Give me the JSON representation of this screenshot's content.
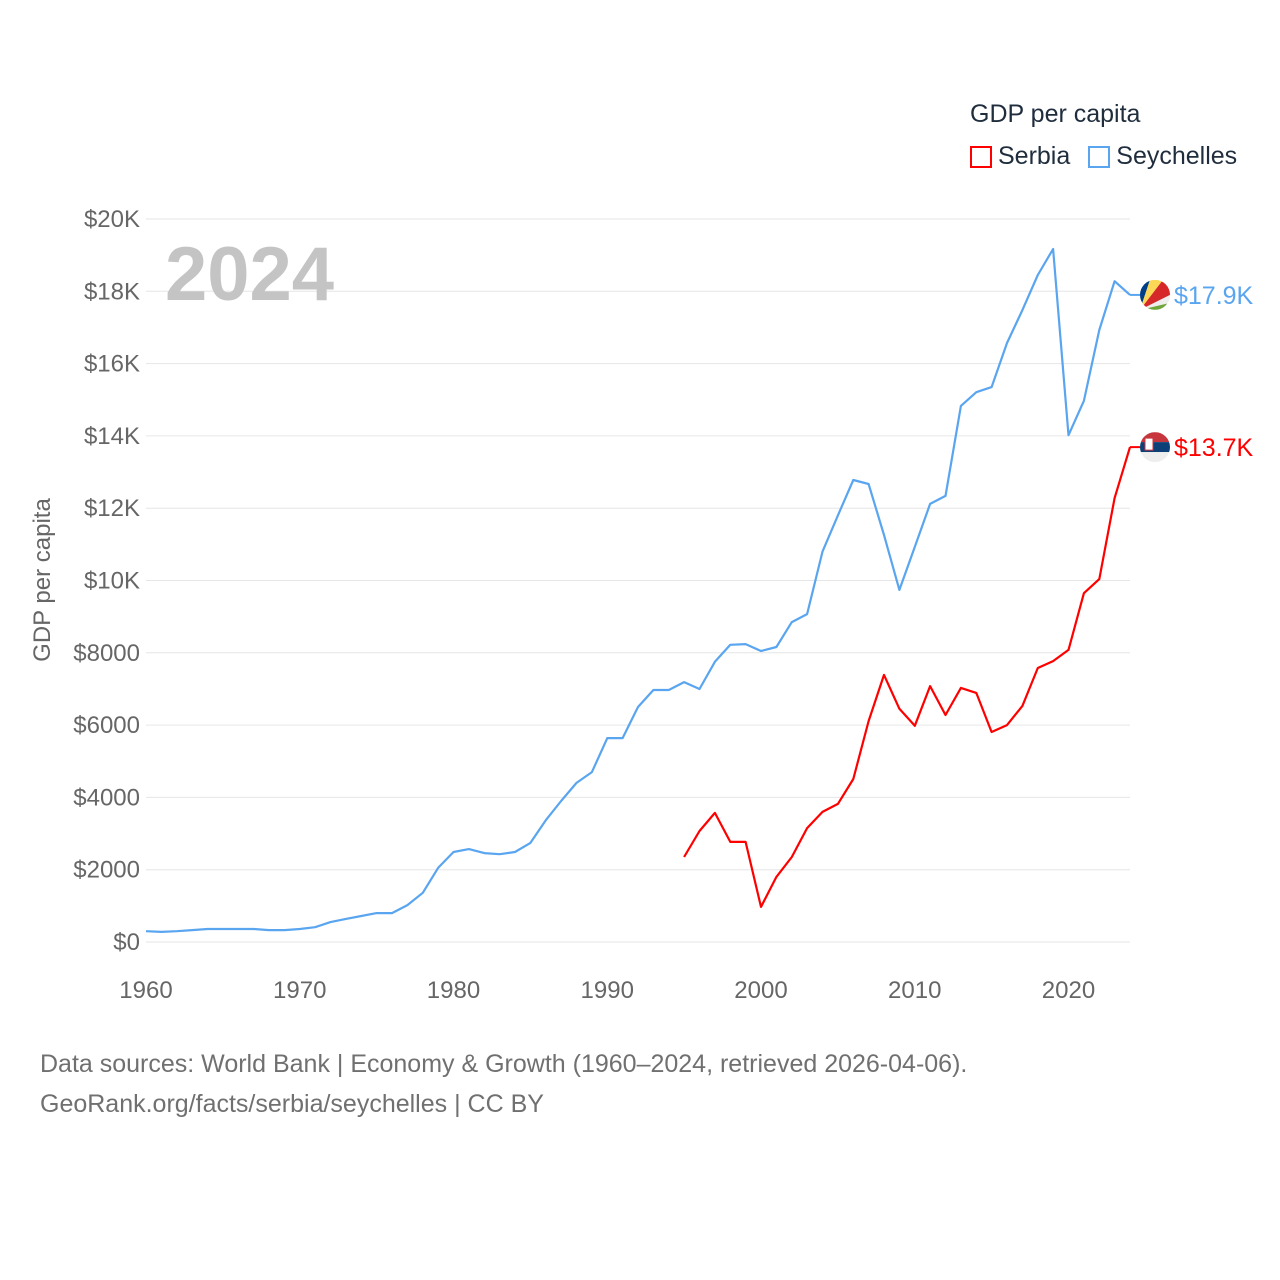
{
  "chart_data": {
    "type": "line",
    "title": "GDP per capita",
    "year_label": "2024",
    "ylabel": "GDP per capita",
    "xlabel": "",
    "xlim": [
      1960,
      2024
    ],
    "ylim": [
      0,
      20000
    ],
    "grid": true,
    "legend_placement": "top-right",
    "x_ticks": [
      1960,
      1970,
      1980,
      1990,
      2000,
      2010,
      2020
    ],
    "x_tick_labels": [
      "1960",
      "1970",
      "1980",
      "1990",
      "2000",
      "2010",
      "2020"
    ],
    "y_ticks": [
      0,
      2000,
      4000,
      6000,
      8000,
      10000,
      12000,
      14000,
      16000,
      18000,
      20000
    ],
    "y_tick_labels": [
      "$0",
      "$2000",
      "$4000",
      "$6000",
      "$8000",
      "$10K",
      "$12K",
      "$14K",
      "$16K",
      "$18K",
      "$20K"
    ],
    "series": [
      {
        "name": "Serbia",
        "color": "#ff0000",
        "end_label": "$13.7K",
        "flag": "serbia-flag",
        "x": [
          1995,
          1996,
          1997,
          1998,
          1999,
          2000,
          2001,
          2002,
          2003,
          2004,
          2005,
          2006,
          2007,
          2008,
          2009,
          2010,
          2011,
          2012,
          2013,
          2014,
          2015,
          2016,
          2017,
          2018,
          2019,
          2020,
          2021,
          2022,
          2023,
          2024
        ],
        "values": [
          2350,
          3070,
          3570,
          2770,
          2770,
          970,
          1800,
          2350,
          3150,
          3600,
          3820,
          4510,
          6110,
          7390,
          6450,
          5980,
          7080,
          6280,
          7030,
          6890,
          5810,
          6000,
          6530,
          7580,
          7770,
          8080,
          9650,
          10040,
          12280,
          13690
        ]
      },
      {
        "name": "Seychelles",
        "color": "#5aa5ef",
        "end_label": "$17.9K",
        "flag": "seychelles-flag",
        "x": [
          1960,
          1961,
          1962,
          1963,
          1964,
          1965,
          1966,
          1967,
          1968,
          1969,
          1970,
          1971,
          1972,
          1973,
          1974,
          1975,
          1976,
          1977,
          1978,
          1979,
          1980,
          1981,
          1982,
          1983,
          1984,
          1985,
          1986,
          1987,
          1988,
          1989,
          1990,
          1991,
          1992,
          1993,
          1994,
          1995,
          1996,
          1997,
          1998,
          1999,
          2000,
          2001,
          2002,
          2003,
          2004,
          2005,
          2006,
          2007,
          2008,
          2009,
          2010,
          2011,
          2012,
          2013,
          2014,
          2015,
          2016,
          2017,
          2018,
          2019,
          2020,
          2021,
          2022,
          2023,
          2024
        ],
        "values": [
          300,
          280,
          300,
          330,
          360,
          360,
          360,
          360,
          330,
          330,
          360,
          410,
          550,
          640,
          720,
          800,
          800,
          1020,
          1360,
          2050,
          2490,
          2570,
          2460,
          2430,
          2490,
          2740,
          3370,
          3900,
          4400,
          4700,
          5640,
          5640,
          6500,
          6970,
          6970,
          7190,
          7000,
          7750,
          8220,
          8240,
          8050,
          8160,
          8850,
          9070,
          10800,
          11800,
          12780,
          12670,
          11260,
          9740,
          10930,
          12120,
          12340,
          14830,
          15210,
          15350,
          16570,
          17480,
          18450,
          19170,
          14020,
          14970,
          16930,
          18280,
          17900
        ]
      }
    ]
  },
  "footer": {
    "line1": "Data sources: World Bank | Economy & Growth (1960–2024, retrieved 2026-04-06).",
    "line2": "GeoRank.org/facts/serbia/seychelles | CC BY"
  }
}
